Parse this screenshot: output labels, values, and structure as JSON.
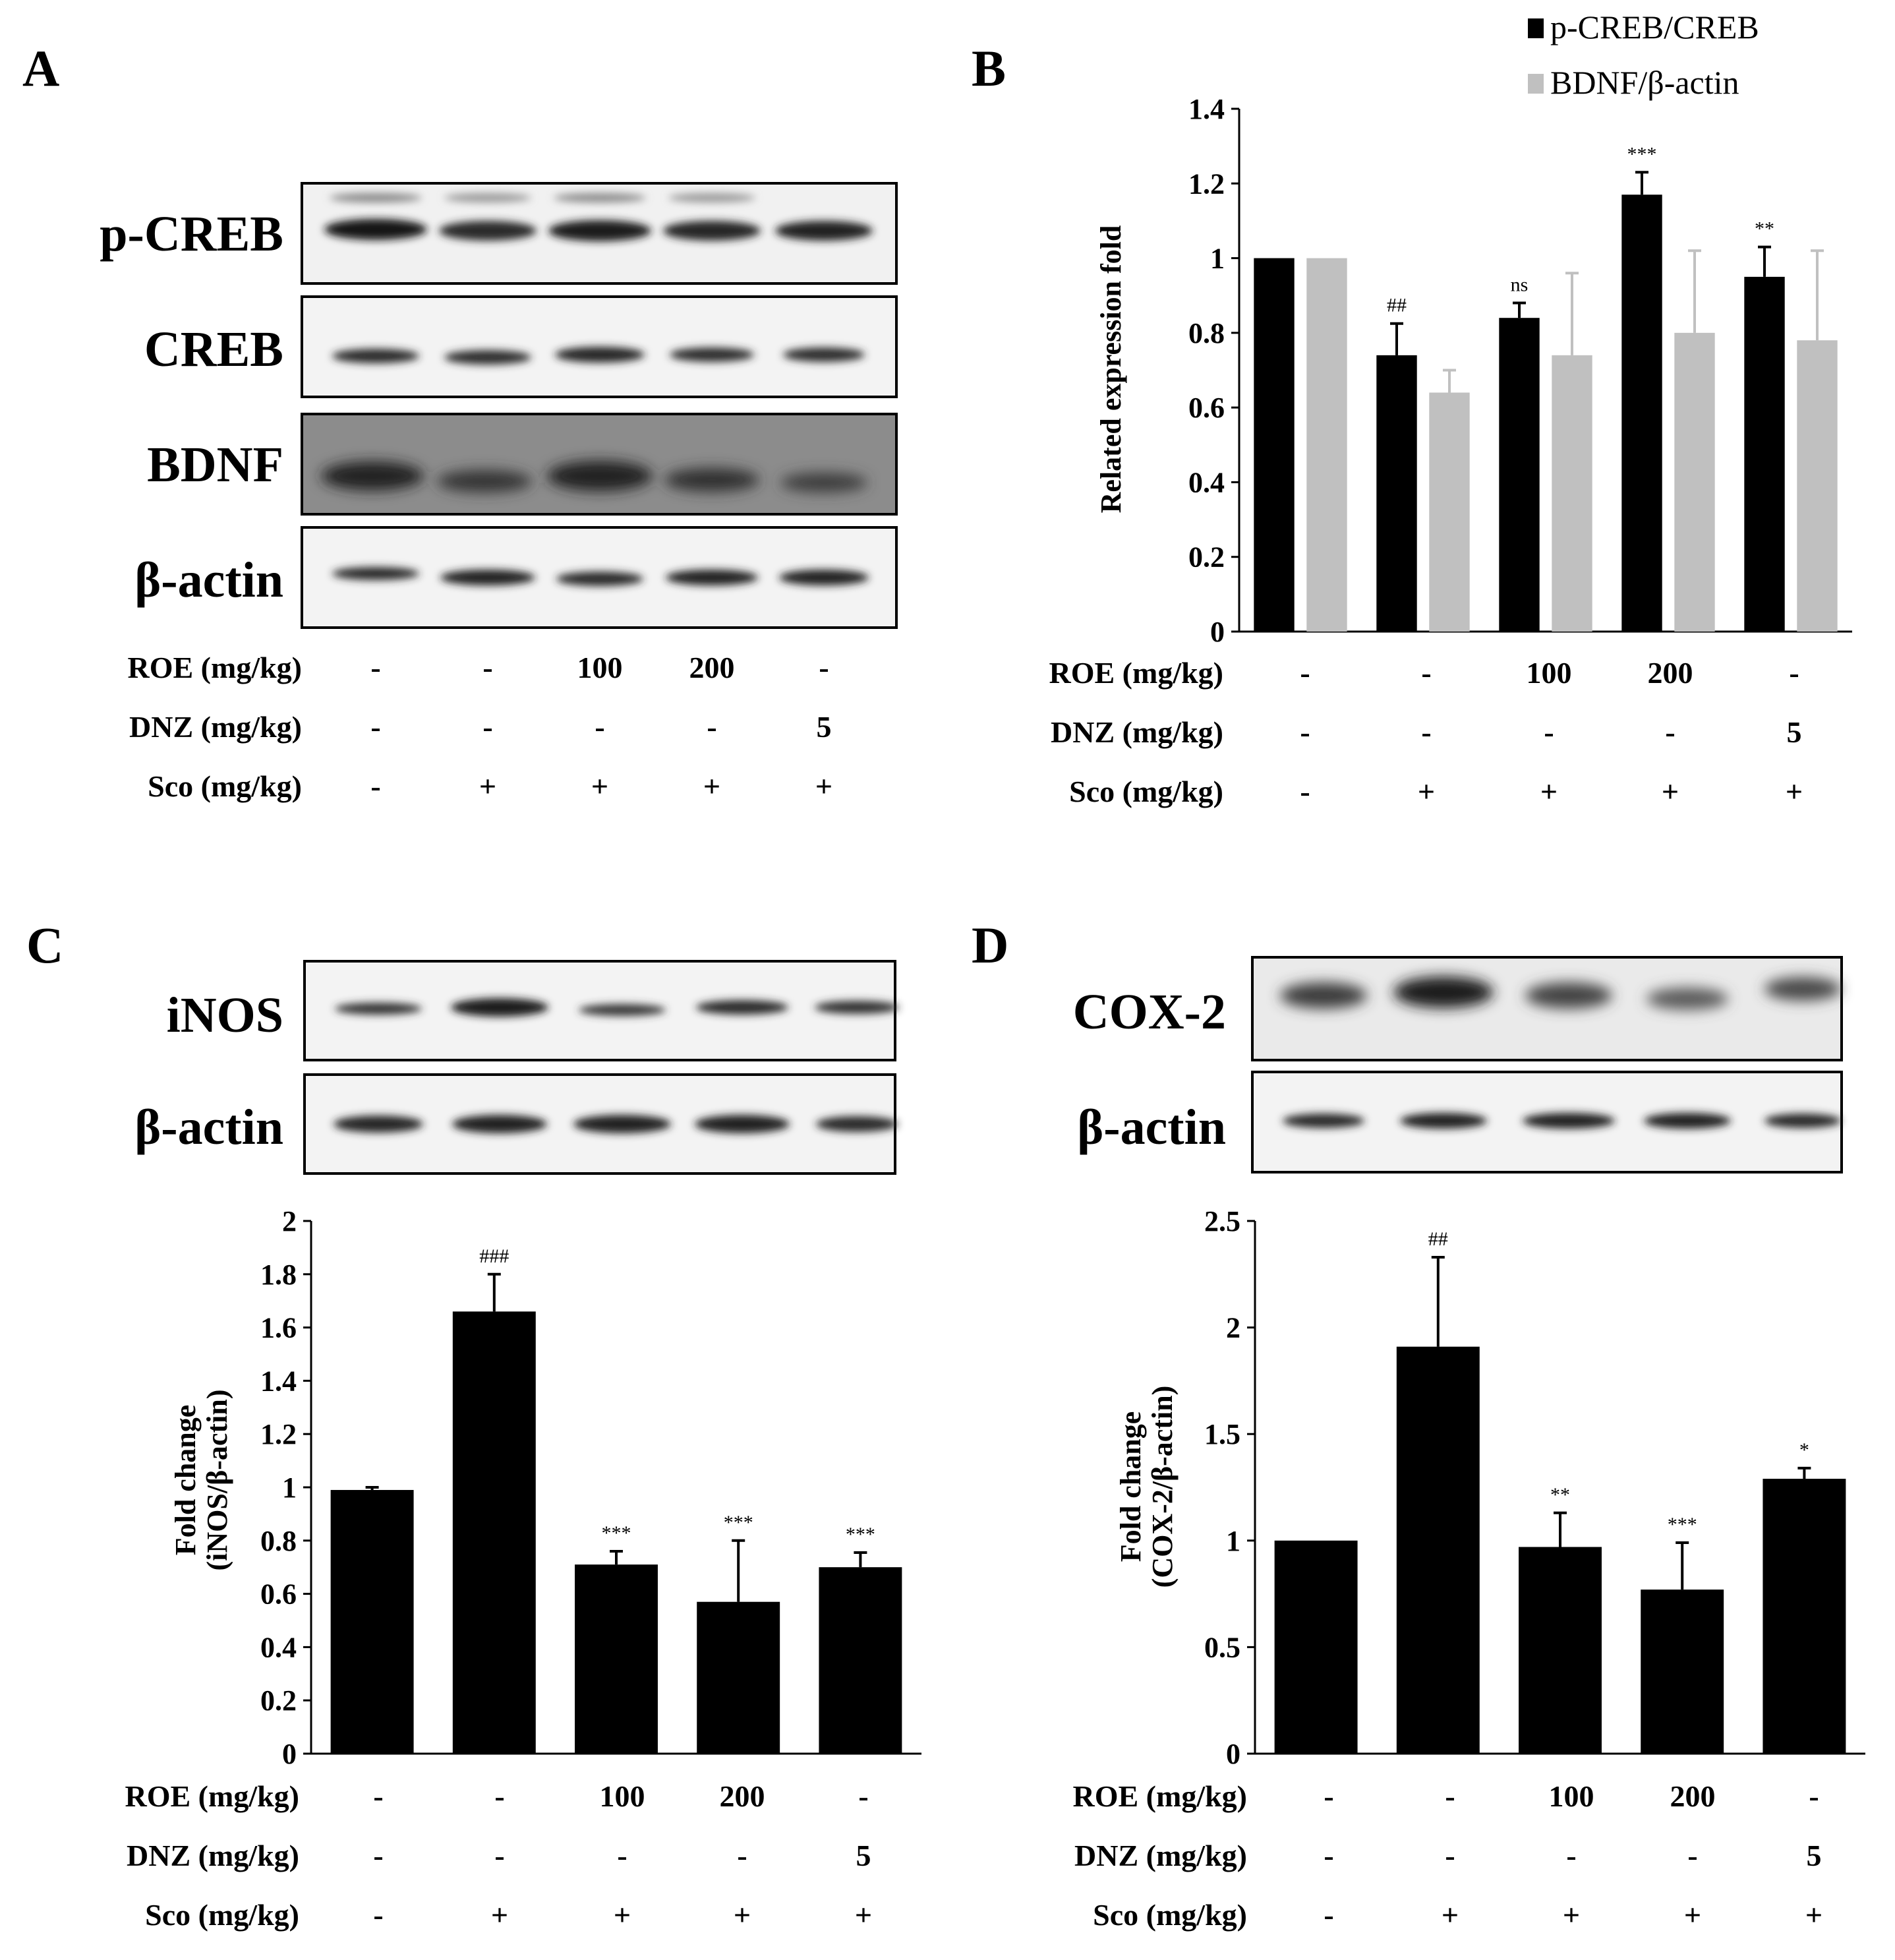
{
  "panels": {
    "A": {
      "letter": "A",
      "blots": [
        "p-CREB",
        "CREB",
        "BDNF",
        "β-actin"
      ]
    },
    "B": {
      "letter": "B"
    },
    "C": {
      "letter": "C",
      "blots": [
        "iNOS",
        "β-actin"
      ]
    },
    "D": {
      "letter": "D",
      "blots": [
        "COX-2",
        "β-actin"
      ]
    }
  },
  "conditions": {
    "labels": [
      "ROE (mg/kg)",
      "DNZ (mg/kg)",
      "Sco (mg/kg)"
    ],
    "rows": [
      [
        "-",
        "-",
        "100",
        "200",
        "-"
      ],
      [
        "-",
        "-",
        "-",
        "-",
        "5"
      ],
      [
        "-",
        "+",
        "+",
        "+",
        "+"
      ]
    ]
  },
  "chart_data": [
    {
      "panel": "B",
      "type": "bar",
      "ylabel": "Related expression fold",
      "ylim": [
        0,
        1.4
      ],
      "yticks": [
        0,
        0.2,
        0.4,
        0.6,
        0.8,
        1,
        1.2,
        1.4
      ],
      "legend_position": "top-right",
      "categories": [
        "1",
        "2",
        "3",
        "4",
        "5"
      ],
      "series": [
        {
          "name": "p-CREB/CREB",
          "color": "#000000",
          "values": [
            1.0,
            0.74,
            0.84,
            1.17,
            0.95
          ],
          "errors": [
            0.005,
            0.085,
            0.04,
            0.06,
            0.08
          ],
          "annotations": [
            "",
            "##",
            "ns",
            "***",
            "**"
          ]
        },
        {
          "name": "BDNF/β-actin",
          "color": "#c0c0c0",
          "values": [
            1.0,
            0.64,
            0.74,
            0.8,
            0.78
          ],
          "errors": [
            0.005,
            0.06,
            0.22,
            0.22,
            0.24
          ],
          "annotations": [
            "",
            "",
            "",
            "",
            ""
          ]
        }
      ]
    },
    {
      "panel": "C",
      "type": "bar",
      "ylabel": "Fold change\n(iNOS/β-actin)",
      "ylim": [
        0,
        2
      ],
      "yticks": [
        0,
        0.2,
        0.4,
        0.6,
        0.8,
        1,
        1.2,
        1.4,
        1.6,
        1.8,
        2
      ],
      "categories": [
        "1",
        "2",
        "3",
        "4",
        "5"
      ],
      "series": [
        {
          "color": "#000000",
          "values": [
            0.99,
            1.66,
            0.71,
            0.57,
            0.7
          ],
          "errors": [
            0.01,
            0.14,
            0.05,
            0.23,
            0.055
          ],
          "annotations": [
            "",
            "###",
            "***",
            "***",
            "***"
          ]
        }
      ]
    },
    {
      "panel": "D",
      "type": "bar",
      "ylabel": "Fold change\n(COX-2/β-actin)",
      "ylim": [
        0,
        2.5
      ],
      "yticks": [
        0,
        0.5,
        1,
        1.5,
        2,
        2.5
      ],
      "categories": [
        "1",
        "2",
        "3",
        "4",
        "5"
      ],
      "series": [
        {
          "color": "#000000",
          "values": [
            1.0,
            1.91,
            0.97,
            0.77,
            1.29
          ],
          "errors": [
            0.005,
            0.42,
            0.16,
            0.22,
            0.05
          ],
          "annotations": [
            "",
            "##",
            "**",
            "***",
            "*"
          ]
        }
      ]
    }
  ]
}
